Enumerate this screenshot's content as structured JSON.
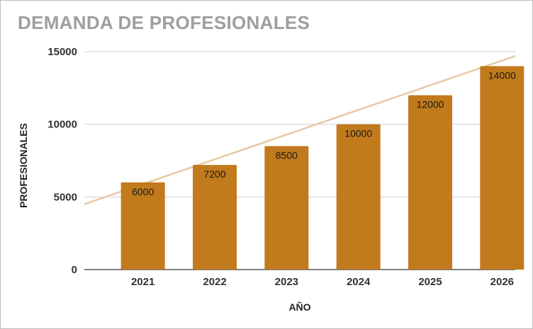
{
  "chart_data": {
    "type": "bar",
    "title": "DEMANDA DE PROFESIONALES",
    "xlabel": "AÑO",
    "ylabel": "PROFESIONALES",
    "categories": [
      "2021",
      "2022",
      "2023",
      "2024",
      "2025",
      "2026"
    ],
    "values": [
      6000,
      7200,
      8500,
      10000,
      12000,
      14000
    ],
    "data_labels": [
      "6000",
      "7200",
      "8500",
      "10000",
      "12000",
      "14000"
    ],
    "ylim": [
      0,
      15000
    ],
    "yticks": [
      0,
      5000,
      10000,
      15000
    ],
    "ytick_labels": [
      "0",
      "5000",
      "10000",
      "15000"
    ],
    "trendline": {
      "type": "linear",
      "from": 4500,
      "to": 14700
    },
    "grid": true,
    "legend": "none",
    "colors": {
      "bar": "#c17a1c",
      "trendline": "#e8c9a4",
      "grid": "#d0d0d0",
      "title": "#9e9e9e"
    }
  }
}
